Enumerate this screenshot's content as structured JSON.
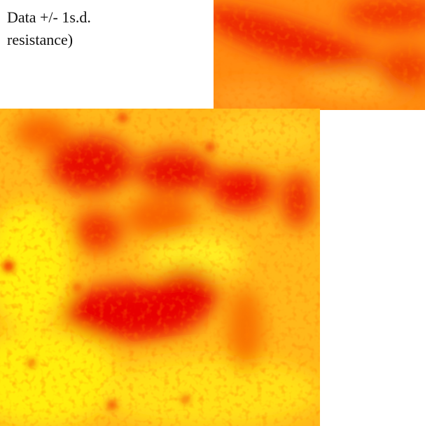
{
  "caption": {
    "line1": "Data +/- 1s.d.",
    "line2": "resistance)"
  }
}
